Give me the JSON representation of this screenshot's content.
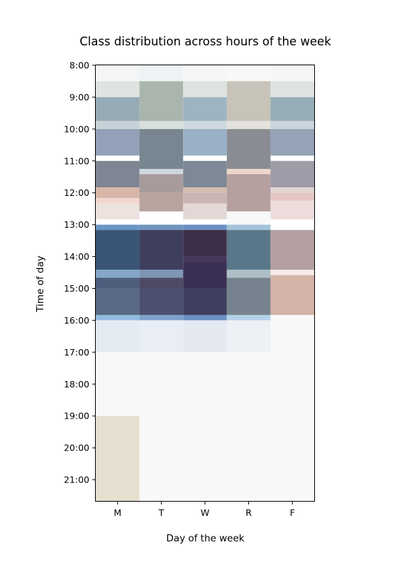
{
  "chart_data": {
    "type": "heatmap",
    "title": "Class distribution across hours of the week",
    "xlabel": "Day of the week",
    "ylabel": "Time of day",
    "categories": [
      "M",
      "T",
      "W",
      "R",
      "F"
    ],
    "y_ticks": [
      "8:00",
      "9:00",
      "10:00",
      "11:00",
      "12:00",
      "13:00",
      "14:00",
      "15:00",
      "16:00",
      "17:00",
      "18:00",
      "19:00",
      "20:00",
      "21:00"
    ],
    "ylim": [
      "8:00",
      "21:40"
    ],
    "y_inverted": true,
    "grid": false,
    "cells": [
      {
        "day": "M",
        "start": "8:00",
        "end": "8:30",
        "color": "#f4f6f5"
      },
      {
        "day": "M",
        "start": "8:30",
        "end": "9:00",
        "color": "#dfe4e1"
      },
      {
        "day": "M",
        "start": "9:00",
        "end": "9:45",
        "color": "#96abb6"
      },
      {
        "day": "M",
        "start": "9:45",
        "end": "10:00",
        "color": "#c7d2d8"
      },
      {
        "day": "M",
        "start": "10:00",
        "end": "10:50",
        "color": "#93a0b7"
      },
      {
        "day": "M",
        "start": "11:00",
        "end": "11:50",
        "color": "#7f8593"
      },
      {
        "day": "M",
        "start": "11:50",
        "end": "12:10",
        "color": "#d8b6a8"
      },
      {
        "day": "M",
        "start": "12:10",
        "end": "12:20",
        "color": "#f0d6ce"
      },
      {
        "day": "M",
        "start": "12:20",
        "end": "12:50",
        "color": "#eee2de"
      },
      {
        "day": "M",
        "start": "13:00",
        "end": "13:10",
        "color": "#6b97c2"
      },
      {
        "day": "M",
        "start": "13:10",
        "end": "14:25",
        "color": "#3a5475"
      },
      {
        "day": "M",
        "start": "14:25",
        "end": "14:40",
        "color": "#84a6c8"
      },
      {
        "day": "M",
        "start": "14:40",
        "end": "15:00",
        "color": "#4d5d7c"
      },
      {
        "day": "M",
        "start": "15:00",
        "end": "15:50",
        "color": "#5a6a84"
      },
      {
        "day": "M",
        "start": "15:50",
        "end": "16:00",
        "color": "#92bbdd"
      },
      {
        "day": "M",
        "start": "16:00",
        "end": "17:00",
        "color": "#e4eaf2"
      },
      {
        "day": "M",
        "start": "17:00",
        "end": "19:00",
        "color": "#f8f8f8"
      },
      {
        "day": "M",
        "start": "19:00",
        "end": "21:40",
        "color": "#e6dfd0"
      },
      {
        "day": "T",
        "start": "8:00",
        "end": "8:30",
        "color": "#edf2f5"
      },
      {
        "day": "T",
        "start": "8:30",
        "end": "9:45",
        "color": "#aab6ad"
      },
      {
        "day": "T",
        "start": "9:45",
        "end": "10:00",
        "color": "#d8dfdc"
      },
      {
        "day": "T",
        "start": "10:00",
        "end": "11:15",
        "color": "#778690"
      },
      {
        "day": "T",
        "start": "11:15",
        "end": "11:25",
        "color": "#cfd7de"
      },
      {
        "day": "T",
        "start": "11:25",
        "end": "12:00",
        "color": "#a79c9b"
      },
      {
        "day": "T",
        "start": "12:00",
        "end": "12:35",
        "color": "#b9a4a0"
      },
      {
        "day": "T",
        "start": "13:00",
        "end": "13:10",
        "color": "#6e95bd"
      },
      {
        "day": "T",
        "start": "13:10",
        "end": "14:25",
        "color": "#3d3f5c"
      },
      {
        "day": "T",
        "start": "14:25",
        "end": "14:40",
        "color": "#7d96b4"
      },
      {
        "day": "T",
        "start": "14:40",
        "end": "15:00",
        "color": "#4c4b63"
      },
      {
        "day": "T",
        "start": "15:00",
        "end": "15:50",
        "color": "#4c4f70"
      },
      {
        "day": "T",
        "start": "15:50",
        "end": "16:00",
        "color": "#7ea2cc"
      },
      {
        "day": "T",
        "start": "16:00",
        "end": "17:00",
        "color": "#e9edf5"
      },
      {
        "day": "T",
        "start": "17:00",
        "end": "21:40",
        "color": "#f8f8f8"
      },
      {
        "day": "W",
        "start": "8:00",
        "end": "8:30",
        "color": "#f5f7f6"
      },
      {
        "day": "W",
        "start": "8:30",
        "end": "9:00",
        "color": "#dfe3e0"
      },
      {
        "day": "W",
        "start": "9:00",
        "end": "9:45",
        "color": "#9db5c1"
      },
      {
        "day": "W",
        "start": "9:45",
        "end": "10:00",
        "color": "#cdd9df"
      },
      {
        "day": "W",
        "start": "10:00",
        "end": "10:50",
        "color": "#99b0c6"
      },
      {
        "day": "W",
        "start": "11:00",
        "end": "11:50",
        "color": "#7e8896"
      },
      {
        "day": "W",
        "start": "11:50",
        "end": "12:00",
        "color": "#d4bcae"
      },
      {
        "day": "W",
        "start": "12:00",
        "end": "12:20",
        "color": "#c8b4b2"
      },
      {
        "day": "W",
        "start": "12:20",
        "end": "12:50",
        "color": "#e4d8d7"
      },
      {
        "day": "W",
        "start": "13:00",
        "end": "13:10",
        "color": "#6a8fc0"
      },
      {
        "day": "W",
        "start": "13:10",
        "end": "14:00",
        "color": "#3e2f48"
      },
      {
        "day": "W",
        "start": "14:00",
        "end": "14:10",
        "color": "#463658"
      },
      {
        "day": "W",
        "start": "14:10",
        "end": "15:00",
        "color": "#3b2f53"
      },
      {
        "day": "W",
        "start": "15:00",
        "end": "15:50",
        "color": "#3e3e5e"
      },
      {
        "day": "W",
        "start": "15:50",
        "end": "16:00",
        "color": "#6b91c4"
      },
      {
        "day": "W",
        "start": "16:00",
        "end": "17:00",
        "color": "#e3e8f1"
      },
      {
        "day": "W",
        "start": "17:00",
        "end": "21:40",
        "color": "#f8f8f8"
      },
      {
        "day": "R",
        "start": "8:00",
        "end": "8:30",
        "color": "#f8f8f8"
      },
      {
        "day": "R",
        "start": "8:30",
        "end": "9:45",
        "color": "#c8c3b8"
      },
      {
        "day": "R",
        "start": "9:45",
        "end": "10:00",
        "color": "#e3e2de"
      },
      {
        "day": "R",
        "start": "10:00",
        "end": "11:15",
        "color": "#8a8c93"
      },
      {
        "day": "R",
        "start": "11:15",
        "end": "11:25",
        "color": "#ecd6cc"
      },
      {
        "day": "R",
        "start": "11:25",
        "end": "12:35",
        "color": "#b59f9f"
      },
      {
        "day": "R",
        "start": "12:35",
        "end": "13:00",
        "color": "#f8f8f8"
      },
      {
        "day": "R",
        "start": "13:00",
        "end": "13:10",
        "color": "#a5c3d8"
      },
      {
        "day": "R",
        "start": "13:10",
        "end": "14:25",
        "color": "#5a7789"
      },
      {
        "day": "R",
        "start": "14:25",
        "end": "14:40",
        "color": "#afbfc8"
      },
      {
        "day": "R",
        "start": "14:40",
        "end": "15:50",
        "color": "#76838e"
      },
      {
        "day": "R",
        "start": "15:50",
        "end": "16:00",
        "color": "#b3d2e8"
      },
      {
        "day": "R",
        "start": "16:00",
        "end": "17:00",
        "color": "#edf0f4"
      },
      {
        "day": "R",
        "start": "17:00",
        "end": "21:40",
        "color": "#f8f8f8"
      },
      {
        "day": "F",
        "start": "8:00",
        "end": "8:30",
        "color": "#f4f6f5"
      },
      {
        "day": "F",
        "start": "8:30",
        "end": "9:00",
        "color": "#dee4e2"
      },
      {
        "day": "F",
        "start": "9:00",
        "end": "9:45",
        "color": "#97adb7"
      },
      {
        "day": "F",
        "start": "9:45",
        "end": "10:00",
        "color": "#cbd6dc"
      },
      {
        "day": "F",
        "start": "10:00",
        "end": "10:50",
        "color": "#94a3b5"
      },
      {
        "day": "F",
        "start": "11:00",
        "end": "11:50",
        "color": "#9e9ca8"
      },
      {
        "day": "F",
        "start": "11:50",
        "end": "12:00",
        "color": "#e4d5d5"
      },
      {
        "day": "F",
        "start": "12:00",
        "end": "12:15",
        "color": "#e4c6c4"
      },
      {
        "day": "F",
        "start": "12:15",
        "end": "12:50",
        "color": "#ecdcdb"
      },
      {
        "day": "F",
        "start": "13:10",
        "end": "14:25",
        "color": "#b4a0a0"
      },
      {
        "day": "F",
        "start": "14:25",
        "end": "14:35",
        "color": "#f5ebe8"
      },
      {
        "day": "F",
        "start": "14:35",
        "end": "15:50",
        "color": "#d3b3a8"
      },
      {
        "day": "F",
        "start": "15:50",
        "end": "21:40",
        "color": "#f8f8f8"
      }
    ]
  }
}
